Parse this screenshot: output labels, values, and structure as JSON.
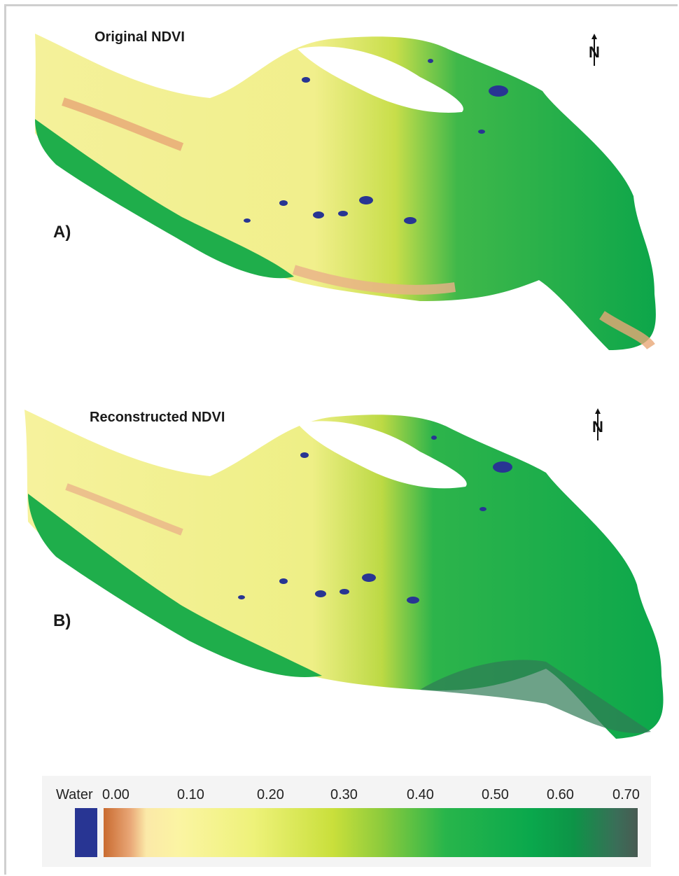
{
  "panels": [
    {
      "title": "Original NDVI",
      "label": "A)",
      "north": "N"
    },
    {
      "title": "Reconstructed NDVI",
      "label": "B)",
      "north": "N"
    }
  ],
  "legend": {
    "water_label": "Water",
    "ticks": [
      "0.00",
      "0.10",
      "0.20",
      "0.30",
      "0.40",
      "0.50",
      "0.60",
      "0.70"
    ],
    "colors": {
      "water": "#283593",
      "ndvi_0_00": "#c96b30",
      "ndvi_0_10": "#fbf4a3",
      "ndvi_0_20": "#eef27a",
      "ndvi_0_30": "#c9df3b",
      "ndvi_0_40": "#28b54b",
      "ndvi_0_50": "#0aa84c",
      "ndvi_0_60": "#0d9447",
      "ndvi_0_70": "#485a52"
    }
  }
}
